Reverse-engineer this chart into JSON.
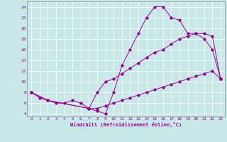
{
  "xlabel": "Windchill (Refroidissement éolien,°C)",
  "bg_color": "#c8e8e8",
  "line_color": "#990099",
  "xlim": [
    -0.5,
    23.5
  ],
  "ylim": [
    3.5,
    25
  ],
  "xticks": [
    0,
    1,
    2,
    3,
    4,
    5,
    6,
    7,
    8,
    9,
    10,
    11,
    12,
    13,
    14,
    15,
    16,
    17,
    18,
    19,
    20,
    21,
    22,
    23
  ],
  "yticks": [
    4,
    6,
    8,
    10,
    12,
    14,
    16,
    18,
    20,
    22,
    24
  ],
  "series": [
    {
      "x": [
        0,
        1,
        2,
        3,
        4,
        5,
        6,
        7,
        8,
        9,
        10,
        11,
        12,
        13,
        14,
        15,
        16,
        17,
        18,
        19,
        20,
        21,
        22,
        23
      ],
      "y": [
        8,
        7,
        6.5,
        6,
        6,
        6.5,
        6,
        5,
        4.5,
        4,
        8,
        13,
        16,
        19,
        22,
        24,
        24,
        22,
        21.5,
        19,
        19,
        18,
        16,
        10.5
      ]
    },
    {
      "x": [
        0,
        2,
        7,
        8,
        9,
        10,
        11,
        12,
        13,
        14,
        15,
        16,
        17,
        18,
        19,
        20,
        21,
        22,
        23
      ],
      "y": [
        8,
        6.5,
        5,
        8,
        10,
        10.5,
        11.5,
        12.5,
        13.5,
        14.5,
        15.5,
        16,
        17,
        18,
        18.5,
        19,
        19,
        18.5,
        10.5
      ]
    },
    {
      "x": [
        0,
        2,
        7,
        8,
        9,
        10,
        11,
        12,
        13,
        14,
        15,
        16,
        17,
        18,
        19,
        20,
        21,
        22,
        23
      ],
      "y": [
        8,
        6.5,
        5,
        5,
        5.5,
        6,
        6.5,
        7,
        7.5,
        8,
        8.5,
        9,
        9.5,
        10,
        10.5,
        11,
        11.5,
        12,
        10.5
      ]
    }
  ]
}
